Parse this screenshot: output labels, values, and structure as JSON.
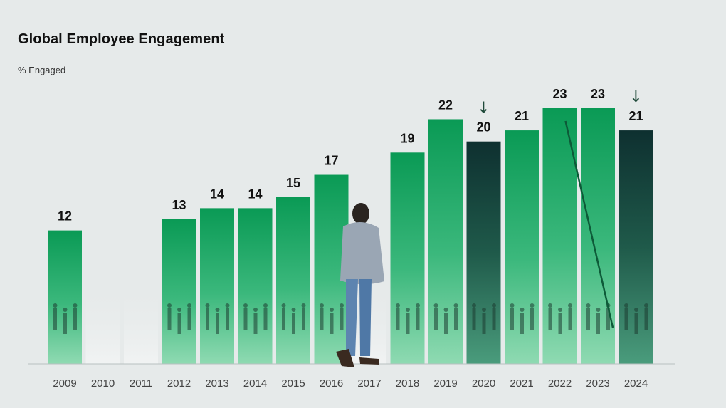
{
  "colors": {
    "background": "#e6eaea",
    "bar_green_top": "#0a9a55",
    "bar_green_bottom": "#7fd4a8",
    "bar_dark_top": "#0e3030",
    "bar_dark_bottom": "#2f7a62",
    "axis": "#b8c0c0",
    "arrow": "#1f4a3a"
  },
  "chart_data": {
    "type": "bar",
    "title": "Global Employee Engagement",
    "subtitle": "% Engaged",
    "xlabel": "",
    "ylabel": "",
    "ylim": [
      0,
      26
    ],
    "grid": false,
    "categories": [
      "2009",
      "2010",
      "2011",
      "2012",
      "2013",
      "2014",
      "2015",
      "2016",
      "2017",
      "2018",
      "2019",
      "2020",
      "2021",
      "2022",
      "2023",
      "2024"
    ],
    "values": [
      12,
      null,
      null,
      13,
      14,
      14,
      15,
      17,
      null,
      19,
      22,
      20,
      21,
      23,
      23,
      21
    ],
    "value_labels": [
      "12",
      "",
      "",
      "13",
      "14",
      "14",
      "15",
      "17",
      "",
      "19",
      "22",
      "20",
      "21",
      "23",
      "23",
      "21"
    ],
    "decline_years": [
      "2020",
      "2024"
    ],
    "decline_marker": "↓"
  }
}
